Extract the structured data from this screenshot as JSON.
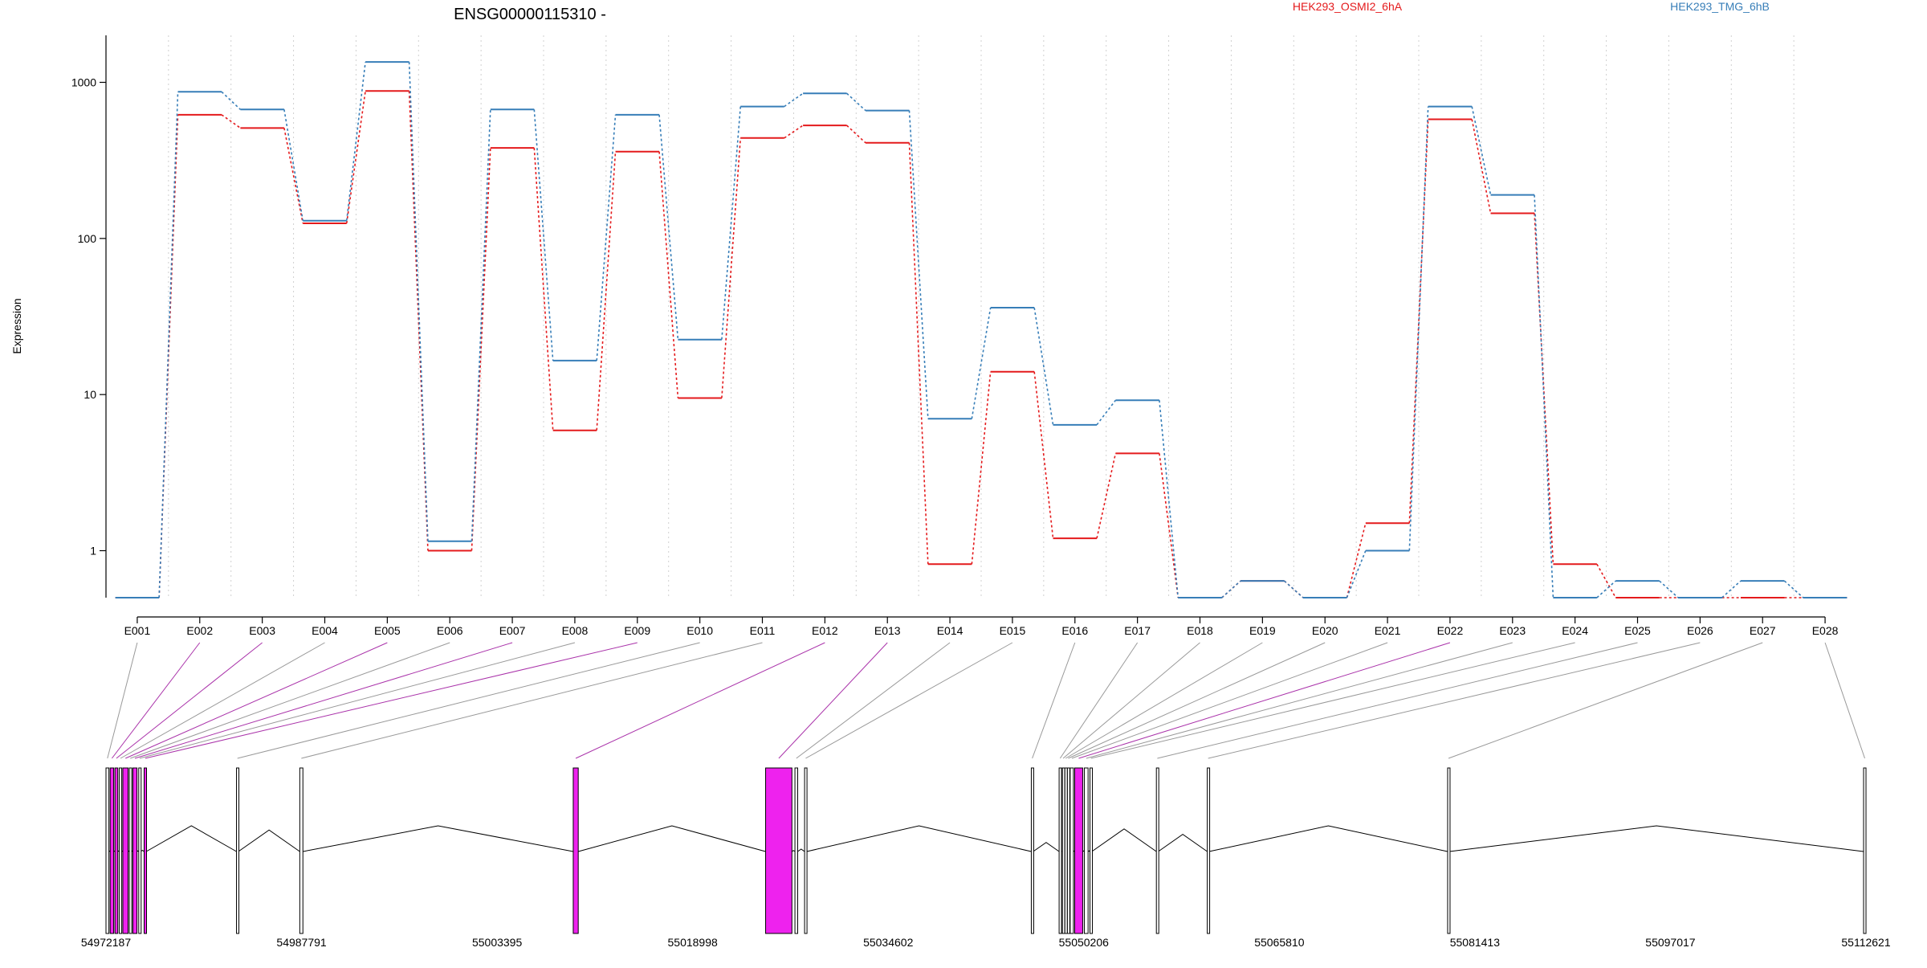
{
  "chart_data": [
    {
      "type": "line",
      "title": "ENSG00000115310 -",
      "xlabel": "",
      "ylabel": "Expression",
      "yscale": "log",
      "ylim": [
        0.5,
        2000
      ],
      "yticks": [
        1,
        10,
        100,
        1000
      ],
      "ytick_labels": [
        "1",
        "10",
        "100",
        "1000"
      ],
      "grid": "vertical dotted lines at exon boundaries",
      "legend_placement": "top",
      "categories": [
        "E001",
        "E002",
        "E003",
        "E004",
        "E005",
        "E006",
        "E007",
        "E008",
        "E009",
        "E010",
        "E011",
        "E012",
        "E013",
        "E014",
        "E015",
        "E016",
        "E017",
        "E018",
        "E019",
        "E020",
        "E021",
        "E022",
        "E023",
        "E024",
        "E025",
        "E026",
        "E027",
        "E028"
      ],
      "series": [
        {
          "name": "HEK293_OSMI2_6hA",
          "color": "#e41a1c",
          "values": [
            0.5,
            620,
            510,
            125,
            880,
            1.0,
            380,
            5.9,
            360,
            9.5,
            440,
            530,
            410,
            0.82,
            14,
            1.2,
            4.2,
            0.5,
            0.64,
            0.5,
            1.5,
            580,
            145,
            0.82,
            0.5,
            0.5,
            0.5,
            0.5
          ]
        },
        {
          "name": "HEK293_TMG_6hB",
          "color": "#377eb8",
          "values": [
            0.5,
            870,
            670,
            130,
            1350,
            1.15,
            670,
            16.5,
            620,
            22.5,
            700,
            850,
            660,
            7.0,
            36,
            6.4,
            9.2,
            0.5,
            0.64,
            0.5,
            1.0,
            700,
            190,
            0.5,
            0.64,
            0.5,
            0.64,
            0.5
          ]
        }
      ]
    },
    {
      "type": "gene_model",
      "xticks": [
        54972187,
        54987791,
        55003395,
        55018998,
        55034602,
        55050206,
        55065810,
        55081413,
        55097017,
        55112621
      ],
      "xtick_labels": [
        "54972187",
        "54987791",
        "55003395",
        "55018998",
        "55034602",
        "55050206",
        "55065810",
        "55081413",
        "55097017",
        "55112621"
      ],
      "xlim": [
        54972187,
        55112621
      ],
      "highlight_color": "#ee22ee",
      "exon_color": "#000000",
      "exons": [
        {
          "id": "E001",
          "start": 54972187,
          "end": 54972420,
          "highlight": false
        },
        {
          "id": "E002",
          "start": 54972520,
          "end": 54972800,
          "highlight": true
        },
        {
          "id": "E003",
          "start": 54972900,
          "end": 54973130,
          "highlight": true
        },
        {
          "id": "E004",
          "start": 54973250,
          "end": 54973440,
          "highlight": false
        },
        {
          "id": "E005",
          "start": 54973530,
          "end": 54973950,
          "highlight": true
        },
        {
          "id": "E006",
          "start": 54974050,
          "end": 54974200,
          "highlight": false
        },
        {
          "id": "E007",
          "start": 54974330,
          "end": 54974660,
          "highlight": true
        },
        {
          "id": "E008",
          "start": 54974800,
          "end": 54974950,
          "highlight": false
        },
        {
          "id": "E009",
          "start": 54975230,
          "end": 54975400,
          "highlight": true
        },
        {
          "id": "E010",
          "start": 54982600,
          "end": 54982750,
          "highlight": false
        },
        {
          "id": "E011",
          "start": 54987650,
          "end": 54987900,
          "highlight": false
        },
        {
          "id": "E012",
          "start": 55009470,
          "end": 55009870,
          "highlight": true
        },
        {
          "id": "E013",
          "start": 55024820,
          "end": 55026920,
          "highlight": true
        },
        {
          "id": "E014",
          "start": 55027160,
          "end": 55027380,
          "highlight": false
        },
        {
          "id": "E015",
          "start": 55027930,
          "end": 55028100,
          "highlight": false
        },
        {
          "id": "E016",
          "start": 55046020,
          "end": 55046170,
          "highlight": false
        },
        {
          "id": "E017",
          "start": 55048240,
          "end": 55048400,
          "highlight": false
        },
        {
          "id": "E018",
          "start": 55048500,
          "end": 55048620,
          "highlight": false
        },
        {
          "id": "E019",
          "start": 55048700,
          "end": 55048820,
          "highlight": false
        },
        {
          "id": "E020",
          "start": 55048900,
          "end": 55049030,
          "highlight": false
        },
        {
          "id": "E021",
          "start": 55049120,
          "end": 55049380,
          "highlight": false
        },
        {
          "id": "E022",
          "start": 55049480,
          "end": 55050120,
          "highlight": true
        },
        {
          "id": "E023",
          "start": 55050250,
          "end": 55050550,
          "highlight": false
        },
        {
          "id": "E024",
          "start": 55050700,
          "end": 55050850,
          "highlight": false
        },
        {
          "id": "E025",
          "start": 55056000,
          "end": 55056150,
          "highlight": false
        },
        {
          "id": "E026",
          "start": 55060060,
          "end": 55060200,
          "highlight": false
        },
        {
          "id": "E027",
          "start": 55079240,
          "end": 55079380,
          "highlight": false
        },
        {
          "id": "E028",
          "start": 55112430,
          "end": 55112621,
          "highlight": false
        }
      ]
    }
  ]
}
